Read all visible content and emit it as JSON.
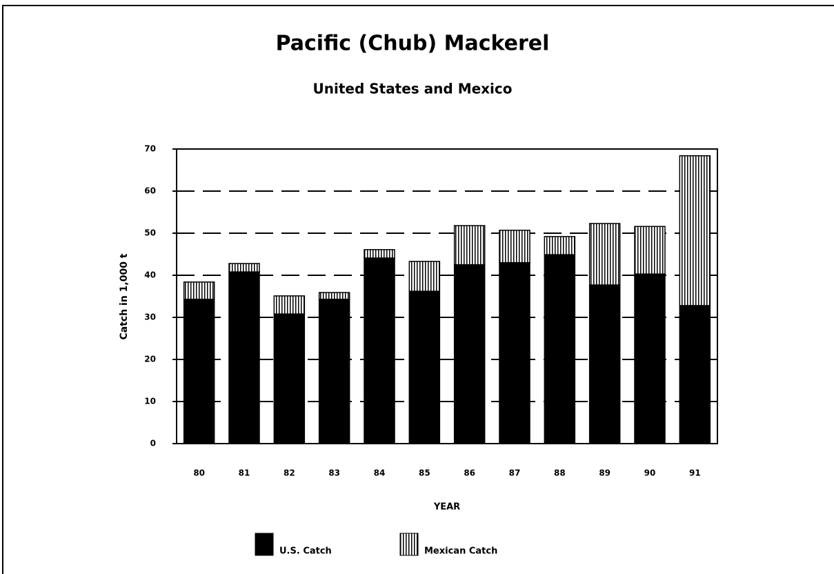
{
  "chart_data": {
    "type": "stacked-bar",
    "title": "Pacific (Chub) Mackerel",
    "subtitle": "United States and Mexico",
    "y_label": "Catch in 1,000 t",
    "x_label": "YEAR",
    "categories": [
      "80",
      "81",
      "82",
      "83",
      "84",
      "85",
      "86",
      "87",
      "88",
      "89",
      "90",
      "91"
    ],
    "series": [
      {
        "name": "U.S. Catch",
        "color": "#000000",
        "pattern": "solid",
        "values": [
          34.3,
          40.8,
          30.8,
          34.3,
          44.1,
          36.2,
          42.5,
          43.0,
          44.9,
          37.7,
          40.3,
          32.8
        ]
      },
      {
        "name": "Mexican Catch",
        "color": "#000000",
        "pattern": "vertical-lines",
        "values": [
          4.1,
          2.0,
          4.3,
          1.6,
          2.0,
          7.1,
          9.3,
          7.7,
          4.3,
          14.6,
          11.3,
          35.6
        ]
      }
    ],
    "ylim": [
      0,
      70
    ],
    "yticks": [
      0,
      10,
      20,
      30,
      40,
      50,
      60,
      70
    ],
    "grid": true
  }
}
